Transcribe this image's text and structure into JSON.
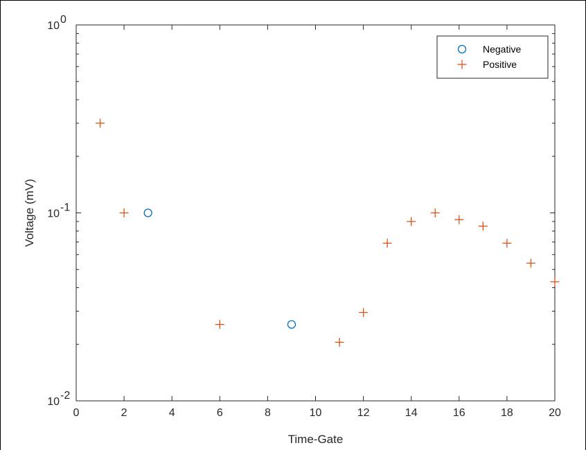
{
  "chart_data": {
    "type": "scatter",
    "title": "",
    "xlabel": "Time-Gate",
    "ylabel": "Voltage (mV)",
    "xlim": [
      0,
      20
    ],
    "ylim": [
      0.01,
      1
    ],
    "yscale": "log",
    "xticks": [
      0,
      2,
      4,
      6,
      8,
      10,
      12,
      14,
      16,
      18,
      20
    ],
    "xtick_labels": [
      "0",
      "2",
      "4",
      "6",
      "8",
      "10",
      "12",
      "14",
      "16",
      "18",
      "20"
    ],
    "yticks": [
      0.01,
      0.1,
      1
    ],
    "ytick_labels": [
      {
        "base": "10",
        "exp": "-2"
      },
      {
        "base": "10",
        "exp": "-1"
      },
      {
        "base": "10",
        "exp": "0"
      }
    ],
    "grid": false,
    "legend_position": "top-right",
    "series": [
      {
        "name": "Negative",
        "marker": "circle",
        "color": "#0072BD",
        "points": [
          {
            "x": 3,
            "y": 0.1
          },
          {
            "x": 9,
            "y": 0.0255
          }
        ]
      },
      {
        "name": "Positive",
        "marker": "plus",
        "color": "#D95319",
        "points": [
          {
            "x": 1,
            "y": 0.3
          },
          {
            "x": 2,
            "y": 0.1
          },
          {
            "x": 6,
            "y": 0.0255
          },
          {
            "x": 11,
            "y": 0.0205
          },
          {
            "x": 12,
            "y": 0.0295
          },
          {
            "x": 13,
            "y": 0.069
          },
          {
            "x": 14,
            "y": 0.09
          },
          {
            "x": 15,
            "y": 0.1
          },
          {
            "x": 16,
            "y": 0.092
          },
          {
            "x": 17,
            "y": 0.085
          },
          {
            "x": 18,
            "y": 0.069
          },
          {
            "x": 19,
            "y": 0.054
          },
          {
            "x": 20,
            "y": 0.043
          }
        ]
      }
    ]
  }
}
